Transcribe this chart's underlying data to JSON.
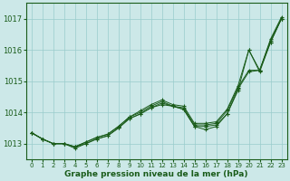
{
  "title": "Graphe pression niveau de la mer (hPa)",
  "bg_color": "#cce8e8",
  "grid_color": "#99cccc",
  "line_color": "#1a5c1a",
  "xlim": [
    -0.5,
    23.5
  ],
  "ylim": [
    1012.5,
    1017.5
  ],
  "yticks": [
    1013,
    1014,
    1015,
    1016,
    1017
  ],
  "xticks": [
    0,
    1,
    2,
    3,
    4,
    5,
    6,
    7,
    8,
    9,
    10,
    11,
    12,
    13,
    14,
    15,
    16,
    17,
    18,
    19,
    20,
    21,
    22,
    23
  ],
  "lines": [
    [
      1013.35,
      1013.15,
      1013.0,
      1013.0,
      1012.9,
      1013.05,
      1013.2,
      1013.3,
      1013.55,
      1013.85,
      1014.05,
      1014.25,
      1014.4,
      1014.25,
      1014.2,
      1013.65,
      1013.65,
      1013.7,
      1014.1,
      1014.85,
      1016.0,
      1015.35,
      1016.35,
      1017.05
    ],
    [
      1013.35,
      1013.15,
      1013.0,
      1013.0,
      1012.9,
      1013.05,
      1013.2,
      1013.3,
      1013.55,
      1013.85,
      1014.0,
      1014.2,
      1014.35,
      1014.2,
      1014.15,
      1013.6,
      1013.6,
      1013.65,
      1014.05,
      1014.8,
      1015.35,
      1015.35,
      1016.3,
      1017.0
    ],
    [
      1013.35,
      1013.15,
      1013.0,
      1013.0,
      1012.9,
      1013.0,
      1013.15,
      1013.25,
      1013.5,
      1013.8,
      1013.95,
      1014.15,
      1014.3,
      1014.2,
      1014.1,
      1013.55,
      1013.55,
      1013.6,
      1013.95,
      1014.75,
      1015.3,
      1015.35,
      1016.25,
      1017.0
    ],
    [
      1013.35,
      1013.15,
      1013.0,
      1013.0,
      1012.85,
      1013.0,
      1013.15,
      1013.25,
      1013.5,
      1013.8,
      1013.95,
      1014.15,
      1014.25,
      1014.2,
      1014.1,
      1013.55,
      1013.45,
      1013.55,
      1013.95,
      1014.7,
      1016.0,
      1015.3,
      1016.25,
      1017.0
    ]
  ]
}
